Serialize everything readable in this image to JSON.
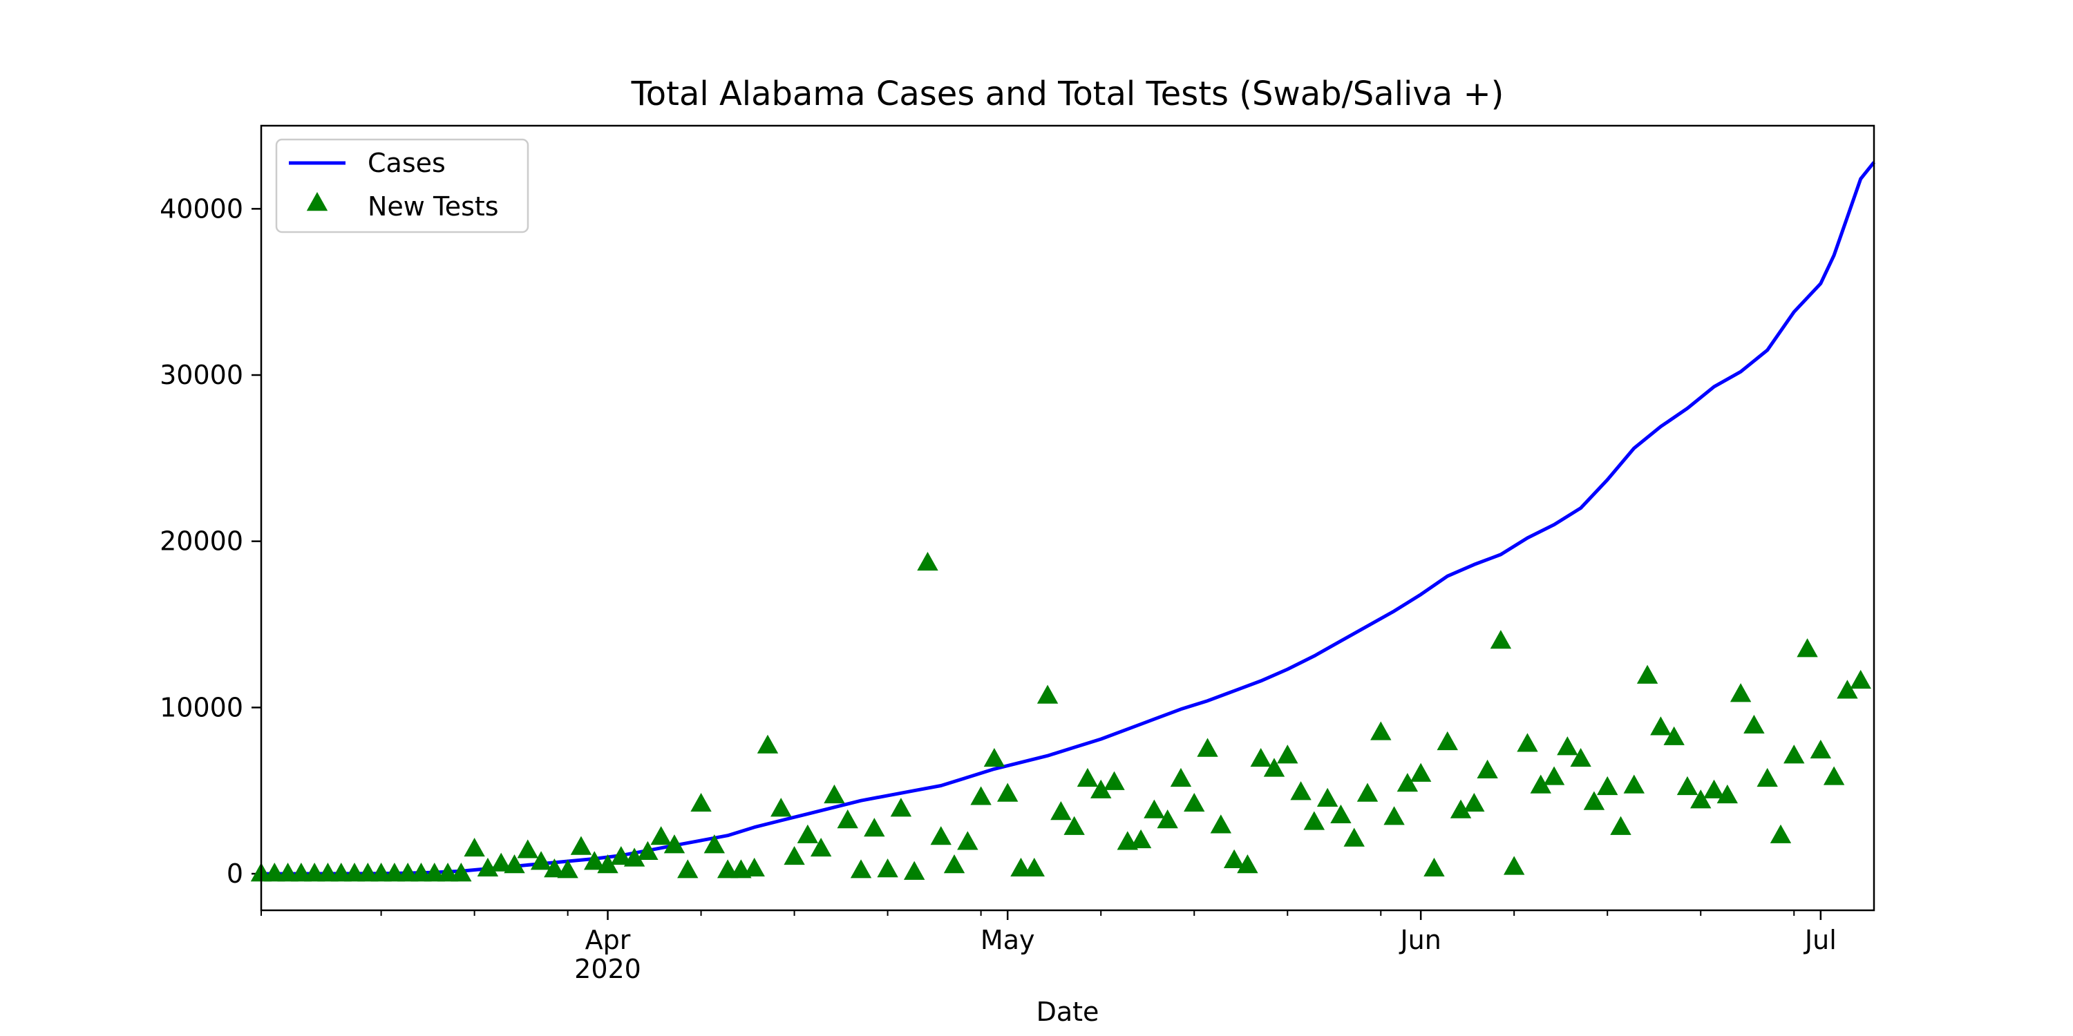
{
  "chart_data": {
    "type": "line+scatter",
    "title": "Total Alabama Cases and Total Tests (Swab/Saliva +)",
    "xlabel": "Date",
    "ylabel": "",
    "xlim": [
      "2020-03-06",
      "2020-07-05"
    ],
    "ylim": [
      -2200,
      45000
    ],
    "yticks": [
      0,
      10000,
      20000,
      30000,
      40000
    ],
    "xticks": [
      {
        "date": "2020-04-01",
        "label": "Apr",
        "sublabel": "2020"
      },
      {
        "date": "2020-05-01",
        "label": "May",
        "sublabel": ""
      },
      {
        "date": "2020-06-01",
        "label": "Jun",
        "sublabel": ""
      },
      {
        "date": "2020-07-01",
        "label": "Jul",
        "sublabel": ""
      }
    ],
    "minor_xticks": [
      "2020-03-06",
      "2020-03-15",
      "2020-03-22",
      "2020-03-29",
      "2020-04-08",
      "2020-04-15",
      "2020-04-22",
      "2020-04-29",
      "2020-05-08",
      "2020-05-15",
      "2020-05-22",
      "2020-05-29",
      "2020-06-08",
      "2020-06-15",
      "2020-06-22",
      "2020-06-29"
    ],
    "legend": {
      "position": "upper-left"
    },
    "grid": false,
    "colors": {
      "cases": "#0000ff",
      "tests": "#008000"
    },
    "series": [
      {
        "name": "Cases",
        "kind": "line",
        "points": [
          [
            "2020-03-06",
            0
          ],
          [
            "2020-03-13",
            6
          ],
          [
            "2020-03-15",
            12
          ],
          [
            "2020-03-17",
            40
          ],
          [
            "2020-03-19",
            80
          ],
          [
            "2020-03-21",
            160
          ],
          [
            "2020-03-23",
            300
          ],
          [
            "2020-03-25",
            450
          ],
          [
            "2020-03-27",
            600
          ],
          [
            "2020-03-29",
            750
          ],
          [
            "2020-03-31",
            900
          ],
          [
            "2020-04-02",
            1100
          ],
          [
            "2020-04-04",
            1400
          ],
          [
            "2020-04-06",
            1700
          ],
          [
            "2020-04-08",
            2000
          ],
          [
            "2020-04-10",
            2300
          ],
          [
            "2020-04-12",
            2800
          ],
          [
            "2020-04-14",
            3200
          ],
          [
            "2020-04-16",
            3600
          ],
          [
            "2020-04-18",
            4000
          ],
          [
            "2020-04-20",
            4400
          ],
          [
            "2020-04-22",
            4700
          ],
          [
            "2020-04-24",
            5000
          ],
          [
            "2020-04-26",
            5300
          ],
          [
            "2020-04-28",
            5800
          ],
          [
            "2020-04-30",
            6300
          ],
          [
            "2020-05-02",
            6700
          ],
          [
            "2020-05-04",
            7100
          ],
          [
            "2020-05-06",
            7600
          ],
          [
            "2020-05-08",
            8100
          ],
          [
            "2020-05-10",
            8700
          ],
          [
            "2020-05-12",
            9300
          ],
          [
            "2020-05-14",
            9900
          ],
          [
            "2020-05-16",
            10400
          ],
          [
            "2020-05-18",
            11000
          ],
          [
            "2020-05-20",
            11600
          ],
          [
            "2020-05-22",
            12300
          ],
          [
            "2020-05-24",
            13100
          ],
          [
            "2020-05-26",
            14000
          ],
          [
            "2020-05-28",
            14900
          ],
          [
            "2020-05-30",
            15800
          ],
          [
            "2020-06-01",
            16800
          ],
          [
            "2020-06-03",
            17900
          ],
          [
            "2020-06-05",
            18600
          ],
          [
            "2020-06-07",
            19200
          ],
          [
            "2020-06-09",
            20200
          ],
          [
            "2020-06-11",
            21000
          ],
          [
            "2020-06-13",
            22000
          ],
          [
            "2020-06-15",
            23700
          ],
          [
            "2020-06-17",
            25600
          ],
          [
            "2020-06-19",
            26900
          ],
          [
            "2020-06-21",
            28000
          ],
          [
            "2020-06-23",
            29300
          ],
          [
            "2020-06-25",
            30200
          ],
          [
            "2020-06-27",
            31500
          ],
          [
            "2020-06-29",
            33800
          ],
          [
            "2020-07-01",
            35500
          ],
          [
            "2020-07-02",
            37200
          ],
          [
            "2020-07-03",
            39500
          ],
          [
            "2020-07-04",
            41800
          ],
          [
            "2020-07-05",
            42800
          ]
        ]
      },
      {
        "name": "New Tests",
        "kind": "scatter",
        "marker": "triangle",
        "points": [
          [
            "2020-03-06",
            0
          ],
          [
            "2020-03-07",
            0
          ],
          [
            "2020-03-08",
            0
          ],
          [
            "2020-03-09",
            0
          ],
          [
            "2020-03-10",
            0
          ],
          [
            "2020-03-11",
            0
          ],
          [
            "2020-03-12",
            0
          ],
          [
            "2020-03-13",
            0
          ],
          [
            "2020-03-14",
            0
          ],
          [
            "2020-03-15",
            0
          ],
          [
            "2020-03-16",
            0
          ],
          [
            "2020-03-17",
            0
          ],
          [
            "2020-03-18",
            0
          ],
          [
            "2020-03-19",
            0
          ],
          [
            "2020-03-20",
            0
          ],
          [
            "2020-03-21",
            0
          ],
          [
            "2020-03-22",
            1500
          ],
          [
            "2020-03-23",
            300
          ],
          [
            "2020-03-24",
            600
          ],
          [
            "2020-03-25",
            500
          ],
          [
            "2020-03-26",
            1400
          ],
          [
            "2020-03-27",
            700
          ],
          [
            "2020-03-28",
            250
          ],
          [
            "2020-03-29",
            200
          ],
          [
            "2020-03-30",
            1600
          ],
          [
            "2020-03-31",
            700
          ],
          [
            "2020-04-01",
            500
          ],
          [
            "2020-04-02",
            1000
          ],
          [
            "2020-04-03",
            900
          ],
          [
            "2020-04-04",
            1300
          ],
          [
            "2020-04-05",
            2200
          ],
          [
            "2020-04-06",
            1700
          ],
          [
            "2020-04-07",
            200
          ],
          [
            "2020-04-08",
            4200
          ],
          [
            "2020-04-09",
            1700
          ],
          [
            "2020-04-10",
            200
          ],
          [
            "2020-04-11",
            200
          ],
          [
            "2020-04-12",
            300
          ],
          [
            "2020-04-13",
            7700
          ],
          [
            "2020-04-14",
            3900
          ],
          [
            "2020-04-15",
            1000
          ],
          [
            "2020-04-16",
            2300
          ],
          [
            "2020-04-17",
            1500
          ],
          [
            "2020-04-18",
            4700
          ],
          [
            "2020-04-19",
            3200
          ],
          [
            "2020-04-20",
            200
          ],
          [
            "2020-04-21",
            2700
          ],
          [
            "2020-04-22",
            250
          ],
          [
            "2020-04-23",
            3900
          ],
          [
            "2020-04-24",
            100
          ],
          [
            "2020-04-25",
            18700
          ],
          [
            "2020-04-26",
            2200
          ],
          [
            "2020-04-27",
            500
          ],
          [
            "2020-04-28",
            1900
          ],
          [
            "2020-04-29",
            4600
          ],
          [
            "2020-04-30",
            6900
          ],
          [
            "2020-05-01",
            4800
          ],
          [
            "2020-05-02",
            300
          ],
          [
            "2020-05-03",
            300
          ],
          [
            "2020-05-04",
            10700
          ],
          [
            "2020-05-05",
            3700
          ],
          [
            "2020-05-06",
            2800
          ],
          [
            "2020-05-07",
            5700
          ],
          [
            "2020-05-08",
            5000
          ],
          [
            "2020-05-09",
            5500
          ],
          [
            "2020-05-10",
            1900
          ],
          [
            "2020-05-11",
            2000
          ],
          [
            "2020-05-12",
            3800
          ],
          [
            "2020-05-13",
            3200
          ],
          [
            "2020-05-14",
            5700
          ],
          [
            "2020-05-15",
            4200
          ],
          [
            "2020-05-16",
            7500
          ],
          [
            "2020-05-17",
            2900
          ],
          [
            "2020-05-18",
            800
          ],
          [
            "2020-05-19",
            500
          ],
          [
            "2020-05-20",
            6900
          ],
          [
            "2020-05-21",
            6300
          ],
          [
            "2020-05-22",
            7100
          ],
          [
            "2020-05-23",
            4900
          ],
          [
            "2020-05-24",
            3100
          ],
          [
            "2020-05-25",
            4500
          ],
          [
            "2020-05-26",
            3500
          ],
          [
            "2020-05-27",
            2100
          ],
          [
            "2020-05-28",
            4800
          ],
          [
            "2020-05-29",
            8500
          ],
          [
            "2020-05-30",
            3400
          ],
          [
            "2020-05-31",
            5400
          ],
          [
            "2020-06-01",
            6000
          ],
          [
            "2020-06-02",
            300
          ],
          [
            "2020-06-03",
            7900
          ],
          [
            "2020-06-04",
            3800
          ],
          [
            "2020-06-05",
            4200
          ],
          [
            "2020-06-06",
            6200
          ],
          [
            "2020-06-07",
            14000
          ],
          [
            "2020-06-08",
            400
          ],
          [
            "2020-06-09",
            7800
          ],
          [
            "2020-06-10",
            5300
          ],
          [
            "2020-06-11",
            5800
          ],
          [
            "2020-06-12",
            7600
          ],
          [
            "2020-06-13",
            6900
          ],
          [
            "2020-06-14",
            4300
          ],
          [
            "2020-06-15",
            5200
          ],
          [
            "2020-06-16",
            2800
          ],
          [
            "2020-06-17",
            5300
          ],
          [
            "2020-06-18",
            11900
          ],
          [
            "2020-06-19",
            8800
          ],
          [
            "2020-06-20",
            8200
          ],
          [
            "2020-06-21",
            5200
          ],
          [
            "2020-06-22",
            4400
          ],
          [
            "2020-06-23",
            5000
          ],
          [
            "2020-06-24",
            4700
          ],
          [
            "2020-06-25",
            10800
          ],
          [
            "2020-06-26",
            8900
          ],
          [
            "2020-06-27",
            5700
          ],
          [
            "2020-06-28",
            2300
          ],
          [
            "2020-06-29",
            7100
          ],
          [
            "2020-06-30",
            13500
          ],
          [
            "2020-07-01",
            7400
          ],
          [
            "2020-07-02",
            5800
          ],
          [
            "2020-07-03",
            11000
          ],
          [
            "2020-07-04",
            11600
          ]
        ]
      }
    ]
  }
}
